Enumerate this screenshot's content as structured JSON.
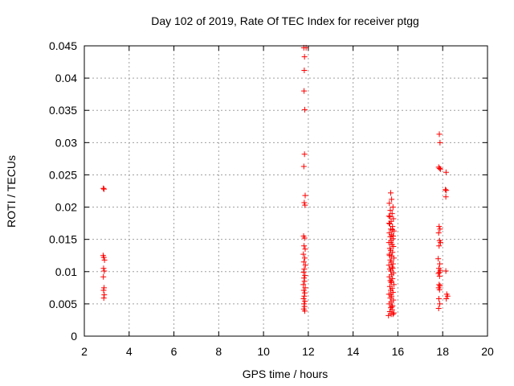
{
  "chart_data": {
    "type": "scatter",
    "title": "Day 102 of 2019, Rate Of TEC Index for receiver ptgg",
    "xlabel": "GPS time / hours",
    "ylabel": "ROTI / TECUs",
    "xlim": [
      2,
      20
    ],
    "ylim": [
      0,
      0.045
    ],
    "xticks": [
      2,
      4,
      6,
      8,
      10,
      12,
      14,
      16,
      18,
      20
    ],
    "yticks": [
      0,
      0.005,
      0.01,
      0.015,
      0.02,
      0.025,
      0.03,
      0.035,
      0.04,
      0.045
    ],
    "xtick_labels": [
      "2",
      "4",
      "6",
      "8",
      "10",
      "12",
      "14",
      "16",
      "18",
      "20"
    ],
    "ytick_labels": [
      "0",
      "0.005",
      "0.01",
      "0.015",
      "0.02",
      "0.025",
      "0.03",
      "0.035",
      "0.04",
      "0.045"
    ],
    "grid": true,
    "marker": "+",
    "marker_color": "#ff0000",
    "series": [
      {
        "name": "ROTI",
        "points": [
          [
            2.85,
            0.0229
          ],
          [
            2.88,
            0.0228
          ],
          [
            2.84,
            0.0125
          ],
          [
            2.87,
            0.0122
          ],
          [
            2.9,
            0.0118
          ],
          [
            2.86,
            0.0105
          ],
          [
            2.89,
            0.0101
          ],
          [
            2.85,
            0.0092
          ],
          [
            2.88,
            0.0075
          ],
          [
            2.86,
            0.0071
          ],
          [
            2.89,
            0.0064
          ],
          [
            2.87,
            0.0059
          ],
          [
            11.8,
            0.0447
          ],
          [
            11.9,
            0.0447
          ],
          [
            11.83,
            0.0433
          ],
          [
            11.82,
            0.0412
          ],
          [
            11.81,
            0.038
          ],
          [
            11.84,
            0.0351
          ],
          [
            11.83,
            0.0282
          ],
          [
            11.8,
            0.0263
          ],
          [
            11.86,
            0.0218
          ],
          [
            11.82,
            0.0207
          ],
          [
            11.85,
            0.0203
          ],
          [
            11.79,
            0.0155
          ],
          [
            11.83,
            0.0152
          ],
          [
            11.81,
            0.014
          ],
          [
            11.86,
            0.0135
          ],
          [
            11.78,
            0.0127
          ],
          [
            11.84,
            0.0121
          ],
          [
            11.8,
            0.0115
          ],
          [
            11.87,
            0.011
          ],
          [
            11.82,
            0.0104
          ],
          [
            11.79,
            0.0099
          ],
          [
            11.85,
            0.0094
          ],
          [
            11.81,
            0.009
          ],
          [
            11.83,
            0.0085
          ],
          [
            11.78,
            0.008
          ],
          [
            11.86,
            0.0075
          ],
          [
            11.8,
            0.0071
          ],
          [
            11.84,
            0.0067
          ],
          [
            11.82,
            0.0062
          ],
          [
            11.79,
            0.0058
          ],
          [
            11.85,
            0.0054
          ],
          [
            11.81,
            0.005
          ],
          [
            11.83,
            0.0046
          ],
          [
            11.8,
            0.0042
          ],
          [
            11.84,
            0.0039
          ],
          [
            15.68,
            0.0222
          ],
          [
            15.72,
            0.0212
          ],
          [
            15.62,
            0.0206
          ],
          [
            15.78,
            0.02
          ],
          [
            15.66,
            0.0195
          ],
          [
            15.74,
            0.019
          ],
          [
            15.6,
            0.0186
          ],
          [
            15.8,
            0.0182
          ],
          [
            15.7,
            0.0178
          ],
          [
            15.64,
            0.0174
          ],
          [
            15.76,
            0.017
          ],
          [
            15.68,
            0.0166
          ],
          [
            15.82,
            0.0163
          ],
          [
            15.62,
            0.016
          ],
          [
            15.72,
            0.0157
          ],
          [
            15.66,
            0.0154
          ],
          [
            15.78,
            0.0151
          ],
          [
            15.7,
            0.0148
          ],
          [
            15.6,
            0.0145
          ],
          [
            15.74,
            0.0142
          ],
          [
            15.8,
            0.0139
          ],
          [
            15.64,
            0.0136
          ],
          [
            15.68,
            0.0133
          ],
          [
            15.76,
            0.013
          ],
          [
            15.62,
            0.0127
          ],
          [
            15.72,
            0.0124
          ],
          [
            15.82,
            0.0121
          ],
          [
            15.66,
            0.0118
          ],
          [
            15.7,
            0.0115
          ],
          [
            15.78,
            0.0112
          ],
          [
            15.6,
            0.011
          ],
          [
            15.74,
            0.0107
          ],
          [
            15.64,
            0.0104
          ],
          [
            15.68,
            0.0101
          ],
          [
            15.8,
            0.0098
          ],
          [
            15.72,
            0.0095
          ],
          [
            15.62,
            0.0092
          ],
          [
            15.76,
            0.0089
          ],
          [
            15.66,
            0.0086
          ],
          [
            15.7,
            0.0083
          ],
          [
            15.82,
            0.008
          ],
          [
            15.64,
            0.0077
          ],
          [
            15.74,
            0.0074
          ],
          [
            15.68,
            0.0071
          ],
          [
            15.78,
            0.0068
          ],
          [
            15.6,
            0.0065
          ],
          [
            15.72,
            0.0062
          ],
          [
            15.66,
            0.0059
          ],
          [
            15.8,
            0.0056
          ],
          [
            15.7,
            0.0053
          ],
          [
            15.62,
            0.005
          ],
          [
            15.76,
            0.0047
          ],
          [
            15.68,
            0.0044
          ],
          [
            15.74,
            0.0041
          ],
          [
            15.64,
            0.0038
          ],
          [
            15.82,
            0.0036
          ],
          [
            15.7,
            0.0034
          ],
          [
            15.58,
            0.0032
          ],
          [
            15.78,
            0.0034
          ],
          [
            15.65,
            0.0185
          ],
          [
            15.75,
            0.0165
          ],
          [
            15.69,
            0.0145
          ],
          [
            15.63,
            0.0125
          ],
          [
            15.77,
            0.0105
          ],
          [
            15.71,
            0.0085
          ],
          [
            15.67,
            0.0065
          ],
          [
            15.73,
            0.0045
          ],
          [
            15.61,
            0.0175
          ],
          [
            15.79,
            0.0155
          ],
          [
            17.85,
            0.0313
          ],
          [
            17.88,
            0.03
          ],
          [
            17.82,
            0.0262
          ],
          [
            17.86,
            0.026
          ],
          [
            17.9,
            0.0259
          ],
          [
            18.15,
            0.0254
          ],
          [
            18.12,
            0.0227
          ],
          [
            18.16,
            0.0226
          ],
          [
            18.14,
            0.0216
          ],
          [
            17.84,
            0.017
          ],
          [
            17.88,
            0.0166
          ],
          [
            17.82,
            0.016
          ],
          [
            17.86,
            0.0148
          ],
          [
            17.9,
            0.0145
          ],
          [
            17.84,
            0.014
          ],
          [
            17.8,
            0.012
          ],
          [
            17.87,
            0.0112
          ],
          [
            17.83,
            0.0105
          ],
          [
            17.89,
            0.0102
          ],
          [
            17.85,
            0.0099
          ],
          [
            17.81,
            0.0097
          ],
          [
            18.14,
            0.0101
          ],
          [
            17.86,
            0.0093
          ],
          [
            17.84,
            0.008
          ],
          [
            17.88,
            0.0078
          ],
          [
            17.82,
            0.0075
          ],
          [
            17.86,
            0.0072
          ],
          [
            18.18,
            0.0065
          ],
          [
            18.22,
            0.0062
          ],
          [
            18.16,
            0.0058
          ],
          [
            17.83,
            0.0058
          ],
          [
            17.87,
            0.005
          ],
          [
            17.82,
            0.0043
          ]
        ]
      }
    ]
  }
}
